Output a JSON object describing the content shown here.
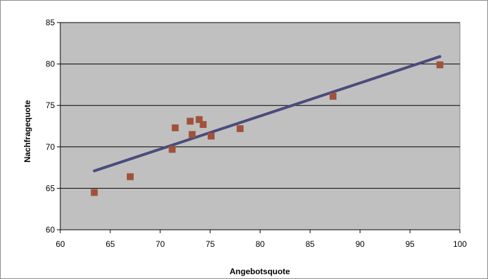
{
  "chart_data": {
    "type": "scatter",
    "title": "",
    "xlabel": "Angebotsquote",
    "ylabel": "Nachfragequote",
    "xlim": [
      60,
      100
    ],
    "ylim": [
      60,
      85
    ],
    "x_ticks": [
      60,
      65,
      70,
      75,
      80,
      85,
      90,
      95,
      100
    ],
    "y_ticks": [
      60,
      65,
      70,
      75,
      80,
      85
    ],
    "grid": "horizontal",
    "plot_background": "#c0c0c0",
    "points": [
      {
        "x": 63.4,
        "y": 64.5
      },
      {
        "x": 67.0,
        "y": 66.4
      },
      {
        "x": 71.2,
        "y": 69.7
      },
      {
        "x": 71.5,
        "y": 72.3
      },
      {
        "x": 73.0,
        "y": 73.1
      },
      {
        "x": 73.2,
        "y": 71.5
      },
      {
        "x": 73.9,
        "y": 73.3
      },
      {
        "x": 74.3,
        "y": 72.7
      },
      {
        "x": 75.1,
        "y": 71.3
      },
      {
        "x": 78.0,
        "y": 72.2
      },
      {
        "x": 87.3,
        "y": 76.1
      },
      {
        "x": 98.0,
        "y": 79.9
      }
    ],
    "trendline": {
      "x": [
        63.4,
        98.0
      ],
      "y": [
        67.1,
        80.9
      ],
      "color": "#4b4b7c"
    },
    "marker_color": "#a0523a"
  }
}
